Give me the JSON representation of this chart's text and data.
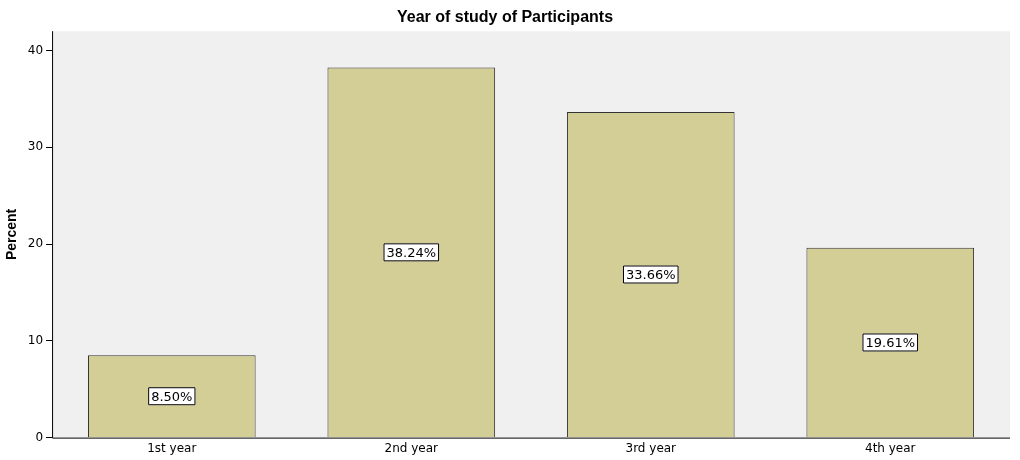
{
  "chart_data": {
    "type": "bar",
    "title": "Year of study of Participants",
    "ylabel": "Percent",
    "categories": [
      "1st year",
      "2nd year",
      "3rd year",
      "4th year"
    ],
    "values": [
      8.5,
      38.24,
      33.66,
      19.61
    ],
    "value_labels": [
      "8.50%",
      "38.24%",
      "33.66%",
      "19.61%"
    ],
    "color": "#d3ce96",
    "ylim": [
      0,
      42
    ],
    "yticks": [
      0,
      10,
      20,
      30,
      40
    ],
    "grid": false,
    "legend": false
  }
}
